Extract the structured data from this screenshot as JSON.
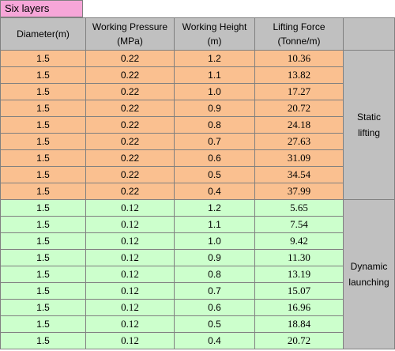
{
  "title": "Six layers",
  "headers": {
    "diameter": "Diameter(m)",
    "pressure_1": "Working Pressure",
    "pressure_2": "(MPa)",
    "height_1": "Working Height",
    "height_2": "(m)",
    "force_1": "Lifting Force",
    "force_2": "(Tonne/m)"
  },
  "groups": {
    "static_1": "Static",
    "static_2": "lifting",
    "dynamic_1": "Dynamic",
    "dynamic_2": "launching"
  },
  "rows": [
    {
      "d": "1.5",
      "p": "0.22",
      "h": "1.2",
      "f": "10.36"
    },
    {
      "d": "1.5",
      "p": "0.22",
      "h": "1.1",
      "f": "13.82"
    },
    {
      "d": "1.5",
      "p": "0.22",
      "h": "1.0",
      "f": "17.27"
    },
    {
      "d": "1.5",
      "p": "0.22",
      "h": "0.9",
      "f": "20.72"
    },
    {
      "d": "1.5",
      "p": "0.22",
      "h": "0.8",
      "f": "24.18"
    },
    {
      "d": "1.5",
      "p": "0.22",
      "h": "0.7",
      "f": "27.63"
    },
    {
      "d": "1.5",
      "p": "0.22",
      "h": "0.6",
      "f": "31.09"
    },
    {
      "d": "1.5",
      "p": "0.22",
      "h": "0.5",
      "f": "34.54"
    },
    {
      "d": "1.5",
      "p": "0.22",
      "h": "0.4",
      "f": "37.99"
    },
    {
      "d": "1.5",
      "p": "0.12",
      "h": "1.2",
      "f": "5.65"
    },
    {
      "d": "1.5",
      "p": "0.12",
      "h": "1.1",
      "f": "7.54"
    },
    {
      "d": "1.5",
      "p": "0.12",
      "h": "1.0",
      "f": "9.42"
    },
    {
      "d": "1.5",
      "p": "0.12",
      "h": "0.9",
      "f": "11.30"
    },
    {
      "d": "1.5",
      "p": "0.12",
      "h": "0.8",
      "f": "13.19"
    },
    {
      "d": "1.5",
      "p": "0.12",
      "h": "0.7",
      "f": "15.07"
    },
    {
      "d": "1.5",
      "p": "0.12",
      "h": "0.6",
      "f": "16.96"
    },
    {
      "d": "1.5",
      "p": "0.12",
      "h": "0.5",
      "f": "18.84"
    },
    {
      "d": "1.5",
      "p": "0.12",
      "h": "0.4",
      "f": "20.72"
    }
  ],
  "colors": {
    "title_bg": "#f6a6d8",
    "header_bg": "#c0c0c0",
    "static_bg": "#fac090",
    "dynamic_bg": "#ccffcc"
  }
}
